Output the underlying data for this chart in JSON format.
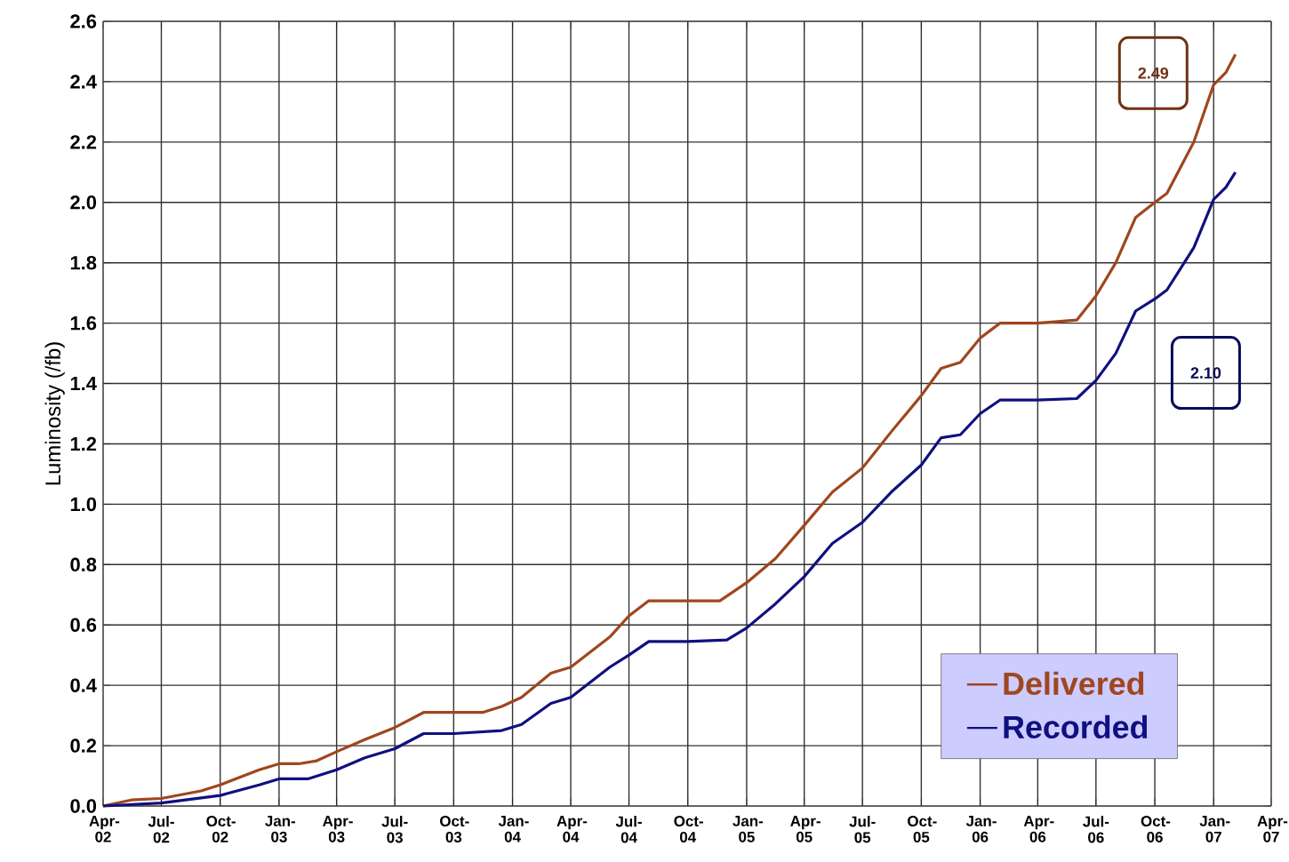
{
  "chart_data": {
    "type": "line",
    "ylabel": "Luminosity (/fb)",
    "xlim": [
      "2002-04-01",
      "2007-04-01"
    ],
    "ylim": [
      0,
      2.6
    ],
    "yticks": [
      {
        "value": 0,
        "label": "0.0"
      },
      {
        "value": 0.2,
        "label": "0.2"
      },
      {
        "value": 0.4,
        "label": "0.4"
      },
      {
        "value": 0.6,
        "label": "0.6"
      },
      {
        "value": 0.8,
        "label": "0.8"
      },
      {
        "value": 1.0,
        "label": "1.0"
      },
      {
        "value": 1.2,
        "label": "1.2"
      },
      {
        "value": 1.4,
        "label": "1.4"
      },
      {
        "value": 1.6,
        "label": "1.6"
      },
      {
        "value": 1.8,
        "label": "1.8"
      },
      {
        "value": 2.0,
        "label": "2.0"
      },
      {
        "value": 2.2,
        "label": "2.2"
      },
      {
        "value": 2.4,
        "label": "2.4"
      },
      {
        "value": 2.6,
        "label": "2.6"
      }
    ],
    "xticks": [
      {
        "value": "2002-04-01",
        "label": "Apr-02"
      },
      {
        "value": "2002-07-01",
        "label": "Jul-02"
      },
      {
        "value": "2002-10-01",
        "label": "Oct-02"
      },
      {
        "value": "2003-01-01",
        "label": "Jan-03"
      },
      {
        "value": "2003-04-01",
        "label": "Apr-03"
      },
      {
        "value": "2003-07-01",
        "label": "Jul-03"
      },
      {
        "value": "2003-10-01",
        "label": "Oct-03"
      },
      {
        "value": "2004-01-01",
        "label": "Jan-04"
      },
      {
        "value": "2004-04-01",
        "label": "Apr-04"
      },
      {
        "value": "2004-07-01",
        "label": "Jul-04"
      },
      {
        "value": "2004-10-01",
        "label": "Oct-04"
      },
      {
        "value": "2005-01-01",
        "label": "Jan-05"
      },
      {
        "value": "2005-04-01",
        "label": "Apr-05"
      },
      {
        "value": "2005-07-01",
        "label": "Jul-05"
      },
      {
        "value": "2005-10-01",
        "label": "Oct-05"
      },
      {
        "value": "2006-01-01",
        "label": "Jan-06"
      },
      {
        "value": "2006-04-01",
        "label": "Apr-06"
      },
      {
        "value": "2006-07-01",
        "label": "Jul-06"
      },
      {
        "value": "2006-10-01",
        "label": "Oct-06"
      },
      {
        "value": "2007-01-01",
        "label": "Jan-07"
      },
      {
        "value": "2007-04-01",
        "label": "Apr-07"
      }
    ],
    "grid": true,
    "legend": "bottom right",
    "marker": "none",
    "line_style": "solid",
    "series": [
      {
        "name": "Delivered",
        "color": "#a0461e",
        "x": [
          "2002-04-01",
          "2002-05-15",
          "2002-07-01",
          "2002-09-01",
          "2002-10-01",
          "2002-12-01",
          "2003-01-01",
          "2003-02-01",
          "2003-03-01",
          "2003-04-01",
          "2003-05-15",
          "2003-07-01",
          "2003-08-15",
          "2003-10-01",
          "2003-11-15",
          "2003-12-15",
          "2004-01-15",
          "2004-03-01",
          "2004-04-01",
          "2004-06-01",
          "2004-07-01",
          "2004-08-01",
          "2004-10-01",
          "2004-11-20",
          "2005-01-01",
          "2005-02-15",
          "2005-04-01",
          "2005-05-15",
          "2005-07-01",
          "2005-08-15",
          "2005-10-01",
          "2005-11-01",
          "2005-12-01",
          "2006-01-01",
          "2006-02-01",
          "2006-04-01",
          "2006-06-01",
          "2006-07-01",
          "2006-08-01",
          "2006-09-01",
          "2006-10-01",
          "2006-10-20",
          "2006-12-01",
          "2007-01-01",
          "2007-01-20",
          "2007-02-04"
        ],
        "values": [
          0,
          0.02,
          0.025,
          0.05,
          0.07,
          0.12,
          0.14,
          0.14,
          0.15,
          0.18,
          0.22,
          0.26,
          0.31,
          0.31,
          0.31,
          0.33,
          0.36,
          0.44,
          0.46,
          0.56,
          0.63,
          0.68,
          0.68,
          0.68,
          0.74,
          0.82,
          0.93,
          1.04,
          1.12,
          1.24,
          1.36,
          1.45,
          1.47,
          1.55,
          1.6,
          1.6,
          1.61,
          1.69,
          1.8,
          1.95,
          2.0,
          2.03,
          2.2,
          2.39,
          2.43,
          2.49
        ]
      },
      {
        "name": "Recorded",
        "color": "#101080",
        "x": [
          "2002-04-01",
          "2002-07-01",
          "2002-10-01",
          "2002-12-01",
          "2003-01-01",
          "2003-02-15",
          "2003-04-01",
          "2003-05-15",
          "2003-07-01",
          "2003-08-15",
          "2003-10-01",
          "2003-12-15",
          "2004-01-15",
          "2004-03-01",
          "2004-04-01",
          "2004-06-01",
          "2004-07-01",
          "2004-08-01",
          "2004-10-01",
          "2004-12-01",
          "2005-01-01",
          "2005-02-15",
          "2005-04-01",
          "2005-05-15",
          "2005-07-01",
          "2005-08-15",
          "2005-10-01",
          "2005-11-01",
          "2005-12-01",
          "2006-01-01",
          "2006-02-01",
          "2006-04-01",
          "2006-06-01",
          "2006-07-01",
          "2006-08-01",
          "2006-09-01",
          "2006-10-01",
          "2006-10-20",
          "2006-12-01",
          "2007-01-01",
          "2007-01-20",
          "2007-02-04"
        ],
        "values": [
          0,
          0.01,
          0.035,
          0.07,
          0.09,
          0.09,
          0.12,
          0.16,
          0.19,
          0.24,
          0.24,
          0.25,
          0.27,
          0.34,
          0.36,
          0.46,
          0.5,
          0.545,
          0.545,
          0.55,
          0.59,
          0.67,
          0.76,
          0.87,
          0.94,
          1.04,
          1.13,
          1.22,
          1.23,
          1.3,
          1.345,
          1.345,
          1.35,
          1.41,
          1.5,
          1.64,
          1.68,
          1.71,
          1.85,
          2.01,
          2.05,
          2.1
        ]
      }
    ],
    "annotations": [
      "2.49",
      "2.10"
    ]
  }
}
